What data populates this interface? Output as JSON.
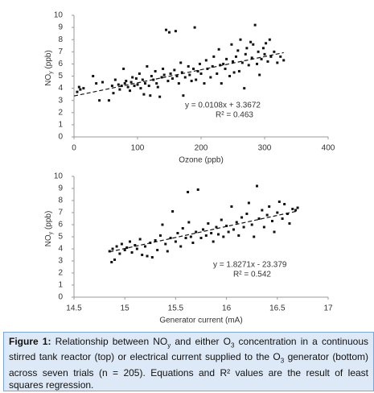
{
  "chart_data": [
    {
      "type": "scatter",
      "xlabel": "Ozone (ppb)",
      "ylabel": [
        {
          "text": "NO"
        },
        {
          "sub": "y"
        },
        {
          "text": " (ppb)"
        }
      ],
      "xlim": [
        0,
        400
      ],
      "ylim": [
        0,
        10
      ],
      "xticks": [
        0,
        100,
        200,
        300,
        400
      ],
      "yticks": [
        0,
        1,
        2,
        3,
        4,
        5,
        6,
        7,
        8,
        9,
        10
      ],
      "color": "#111111",
      "x": [
        5,
        8,
        10,
        15,
        30,
        35,
        40,
        45,
        55,
        60,
        62,
        65,
        70,
        72,
        75,
        78,
        80,
        82,
        85,
        88,
        90,
        92,
        95,
        98,
        100,
        103,
        105,
        108,
        110,
        112,
        115,
        118,
        120,
        122,
        125,
        128,
        130,
        132,
        135,
        138,
        140,
        142,
        145,
        148,
        150,
        152,
        155,
        158,
        160,
        162,
        165,
        168,
        170,
        172,
        175,
        180,
        182,
        185,
        188,
        190,
        192,
        195,
        198,
        200,
        205,
        208,
        210,
        215,
        218,
        220,
        225,
        228,
        230,
        232,
        235,
        238,
        240,
        245,
        248,
        250,
        252,
        255,
        258,
        260,
        262,
        265,
        268,
        270,
        272,
        275,
        278,
        280,
        282,
        285,
        288,
        290,
        292,
        295,
        298,
        300,
        302,
        305,
        308,
        310,
        315,
        320,
        325,
        330
      ],
      "y": [
        3.7,
        4.1,
        3.9,
        4.0,
        5.0,
        4.4,
        3.0,
        4.5,
        3.0,
        4.2,
        3.6,
        4.7,
        4.3,
        3.9,
        4.2,
        5.6,
        4.4,
        4.6,
        4.1,
        3.8,
        4.5,
        4.9,
        4.2,
        4.8,
        4.3,
        5.2,
        4.0,
        4.7,
        3.5,
        4.4,
        5.8,
        4.2,
        3.4,
        5.0,
        4.7,
        5.4,
        4.4,
        4.1,
        3.3,
        4.9,
        5.6,
        5.1,
        8.8,
        4.6,
        8.6,
        5.2,
        4.8,
        5.5,
        8.7,
        5.0,
        4.4,
        6.1,
        5.3,
        3.4,
        4.9,
        5.8,
        5.1,
        4.6,
        5.6,
        9.0,
        4.7,
        5.4,
        6.0,
        5.2,
        4.4,
        6.3,
        5.6,
        4.9,
        5.8,
        6.6,
        5.2,
        7.2,
        5.9,
        4.4,
        6.0,
        5.6,
        6.4,
        5.0,
        7.6,
        6.2,
        5.3,
        6.6,
        7.1,
        5.4,
        8.0,
        6.1,
        4.0,
        6.8,
        7.3,
        5.9,
        7.8,
        6.5,
        7.6,
        9.2,
        6.0,
        7.0,
        5.1,
        6.4,
        7.3,
        6.8,
        7.7,
        6.2,
        8.0,
        6.6,
        7.0,
        6.1,
        6.6,
        6.3
      ],
      "trendline": {
        "x": [
          0,
          330
        ],
        "y": [
          3.3672,
          6.93
        ]
      },
      "annotations": [
        "y = 0.0108x + 3.3672",
        "R² = 0.463"
      ]
    },
    {
      "type": "scatter",
      "xlabel": "Generator current (mA)",
      "ylabel": [
        {
          "text": "NO"
        },
        {
          "sub": "y"
        },
        {
          "text": " (ppb)"
        }
      ],
      "xlim": [
        14.5,
        17
      ],
      "ylim": [
        0,
        10
      ],
      "xticks": [
        14.5,
        15,
        15.5,
        16,
        16.5,
        17
      ],
      "yticks": [
        0,
        1,
        2,
        3,
        4,
        5,
        6,
        7,
        8,
        9,
        10
      ],
      "color": "#111111",
      "x": [
        14.85,
        14.87,
        14.88,
        14.9,
        14.92,
        14.95,
        14.97,
        15.0,
        15.02,
        15.05,
        15.07,
        15.1,
        15.12,
        15.15,
        15.17,
        15.2,
        15.22,
        15.25,
        15.27,
        15.3,
        15.32,
        15.35,
        15.37,
        15.4,
        15.42,
        15.45,
        15.47,
        15.5,
        15.52,
        15.55,
        15.57,
        15.6,
        15.62,
        15.63,
        15.65,
        15.67,
        15.7,
        15.72,
        15.75,
        15.77,
        15.8,
        15.82,
        15.85,
        15.87,
        15.9,
        15.92,
        15.95,
        15.97,
        16.0,
        16.02,
        16.05,
        16.07,
        16.1,
        16.12,
        16.15,
        16.17,
        16.2,
        16.22,
        16.25,
        16.27,
        16.3,
        16.32,
        16.35,
        16.37,
        16.4,
        16.42,
        16.45,
        16.47,
        16.5,
        16.52,
        16.55,
        16.57,
        16.6,
        16.62,
        16.65,
        16.68,
        16.7
      ],
      "y": [
        3.8,
        2.9,
        4.0,
        3.1,
        4.2,
        3.6,
        4.4,
        3.9,
        4.1,
        4.6,
        3.7,
        4.3,
        4.0,
        4.8,
        3.5,
        4.2,
        3.4,
        4.5,
        3.3,
        4.7,
        3.9,
        5.1,
        6.0,
        4.4,
        3.8,
        4.9,
        7.1,
        4.6,
        5.3,
        4.2,
        5.7,
        4.9,
        8.7,
        6.2,
        5.0,
        4.5,
        5.4,
        8.9,
        4.9,
        5.6,
        5.1,
        6.1,
        5.3,
        4.6,
        5.8,
        5.2,
        6.4,
        5.0,
        5.9,
        5.4,
        7.5,
        5.6,
        6.2,
        5.1,
        6.6,
        5.8,
        6.9,
        7.8,
        6.0,
        5.0,
        9.2,
        6.5,
        7.2,
        5.8,
        6.8,
        7.5,
        6.3,
        5.4,
        7.0,
        7.9,
        6.5,
        7.7,
        6.9,
        6.1,
        7.3,
        7.2,
        7.4
      ],
      "trendline": {
        "x": [
          14.85,
          16.7
        ],
        "y": [
          3.753,
          7.133
        ]
      },
      "annotations": [
        "y = 1.8271x - 23.379",
        "R² = 0.542"
      ]
    }
  ],
  "caption": {
    "label": "Figure 1:",
    "segments": [
      {
        "text": " Relationship between NO"
      },
      {
        "sub": "y"
      },
      {
        "text": " and either O"
      },
      {
        "sub": "3"
      },
      {
        "text": " concentration in a continuous stirred tank reactor (top) or electrical current supplied to the O"
      },
      {
        "sub": "3"
      },
      {
        "text": " generator (bottom) across seven trials (n = 205). Equations and R² values are the result of least squares regression."
      }
    ]
  }
}
